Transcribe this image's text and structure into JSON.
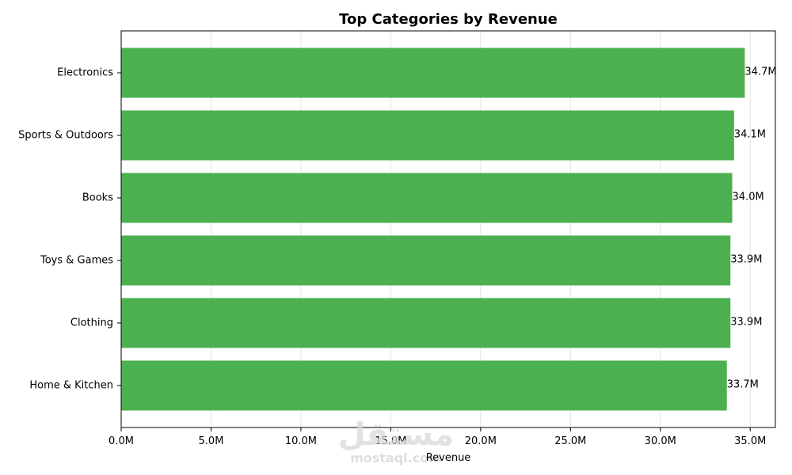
{
  "chart_data": {
    "type": "bar",
    "orientation": "horizontal",
    "title": "Top Categories by Revenue",
    "xlabel": "Revenue",
    "ylabel": "",
    "categories": [
      "Electronics",
      "Sports & Outdoors",
      "Books",
      "Toys & Games",
      "Clothing",
      "Home & Kitchen"
    ],
    "values": [
      34.7,
      34.1,
      34.0,
      33.9,
      33.9,
      33.7
    ],
    "value_labels": [
      "34.7M",
      "34.1M",
      "34.0M",
      "33.9M",
      "33.9M",
      "33.7M"
    ],
    "value_unit": "M",
    "xlim": [
      0,
      36.4
    ],
    "xticks": [
      0,
      5,
      10,
      15,
      20,
      25,
      30,
      35
    ],
    "xtick_labels": [
      "0.0M",
      "5.0M",
      "10.0M",
      "15.0M",
      "20.0M",
      "25.0M",
      "30.0M",
      "35.0M"
    ],
    "grid": "x",
    "bar_color": "#4caf50"
  },
  "watermark": {
    "arabic": "مستقل",
    "latin": "mostaql.com"
  }
}
